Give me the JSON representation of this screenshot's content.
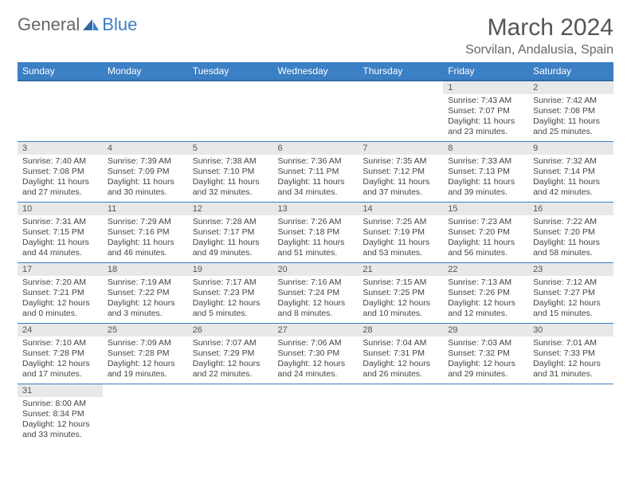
{
  "logo": {
    "word1": "General",
    "word2": "Blue"
  },
  "title": "March 2024",
  "location": "Sorvilan, Andalusia, Spain",
  "weekdays": [
    "Sunday",
    "Monday",
    "Tuesday",
    "Wednesday",
    "Thursday",
    "Friday",
    "Saturday"
  ],
  "header_bg": "#3b7fc4",
  "daynum_bg": "#e8e8e8",
  "rows": [
    [
      null,
      null,
      null,
      null,
      null,
      {
        "n": "1",
        "sr": "7:43 AM",
        "ss": "7:07 PM",
        "dl": "11 hours and 23 minutes."
      },
      {
        "n": "2",
        "sr": "7:42 AM",
        "ss": "7:08 PM",
        "dl": "11 hours and 25 minutes."
      }
    ],
    [
      {
        "n": "3",
        "sr": "7:40 AM",
        "ss": "7:08 PM",
        "dl": "11 hours and 27 minutes."
      },
      {
        "n": "4",
        "sr": "7:39 AM",
        "ss": "7:09 PM",
        "dl": "11 hours and 30 minutes."
      },
      {
        "n": "5",
        "sr": "7:38 AM",
        "ss": "7:10 PM",
        "dl": "11 hours and 32 minutes."
      },
      {
        "n": "6",
        "sr": "7:36 AM",
        "ss": "7:11 PM",
        "dl": "11 hours and 34 minutes."
      },
      {
        "n": "7",
        "sr": "7:35 AM",
        "ss": "7:12 PM",
        "dl": "11 hours and 37 minutes."
      },
      {
        "n": "8",
        "sr": "7:33 AM",
        "ss": "7:13 PM",
        "dl": "11 hours and 39 minutes."
      },
      {
        "n": "9",
        "sr": "7:32 AM",
        "ss": "7:14 PM",
        "dl": "11 hours and 42 minutes."
      }
    ],
    [
      {
        "n": "10",
        "sr": "7:31 AM",
        "ss": "7:15 PM",
        "dl": "11 hours and 44 minutes."
      },
      {
        "n": "11",
        "sr": "7:29 AM",
        "ss": "7:16 PM",
        "dl": "11 hours and 46 minutes."
      },
      {
        "n": "12",
        "sr": "7:28 AM",
        "ss": "7:17 PM",
        "dl": "11 hours and 49 minutes."
      },
      {
        "n": "13",
        "sr": "7:26 AM",
        "ss": "7:18 PM",
        "dl": "11 hours and 51 minutes."
      },
      {
        "n": "14",
        "sr": "7:25 AM",
        "ss": "7:19 PM",
        "dl": "11 hours and 53 minutes."
      },
      {
        "n": "15",
        "sr": "7:23 AM",
        "ss": "7:20 PM",
        "dl": "11 hours and 56 minutes."
      },
      {
        "n": "16",
        "sr": "7:22 AM",
        "ss": "7:20 PM",
        "dl": "11 hours and 58 minutes."
      }
    ],
    [
      {
        "n": "17",
        "sr": "7:20 AM",
        "ss": "7:21 PM",
        "dl": "12 hours and 0 minutes."
      },
      {
        "n": "18",
        "sr": "7:19 AM",
        "ss": "7:22 PM",
        "dl": "12 hours and 3 minutes."
      },
      {
        "n": "19",
        "sr": "7:17 AM",
        "ss": "7:23 PM",
        "dl": "12 hours and 5 minutes."
      },
      {
        "n": "20",
        "sr": "7:16 AM",
        "ss": "7:24 PM",
        "dl": "12 hours and 8 minutes."
      },
      {
        "n": "21",
        "sr": "7:15 AM",
        "ss": "7:25 PM",
        "dl": "12 hours and 10 minutes."
      },
      {
        "n": "22",
        "sr": "7:13 AM",
        "ss": "7:26 PM",
        "dl": "12 hours and 12 minutes."
      },
      {
        "n": "23",
        "sr": "7:12 AM",
        "ss": "7:27 PM",
        "dl": "12 hours and 15 minutes."
      }
    ],
    [
      {
        "n": "24",
        "sr": "7:10 AM",
        "ss": "7:28 PM",
        "dl": "12 hours and 17 minutes."
      },
      {
        "n": "25",
        "sr": "7:09 AM",
        "ss": "7:28 PM",
        "dl": "12 hours and 19 minutes."
      },
      {
        "n": "26",
        "sr": "7:07 AM",
        "ss": "7:29 PM",
        "dl": "12 hours and 22 minutes."
      },
      {
        "n": "27",
        "sr": "7:06 AM",
        "ss": "7:30 PM",
        "dl": "12 hours and 24 minutes."
      },
      {
        "n": "28",
        "sr": "7:04 AM",
        "ss": "7:31 PM",
        "dl": "12 hours and 26 minutes."
      },
      {
        "n": "29",
        "sr": "7:03 AM",
        "ss": "7:32 PM",
        "dl": "12 hours and 29 minutes."
      },
      {
        "n": "30",
        "sr": "7:01 AM",
        "ss": "7:33 PM",
        "dl": "12 hours and 31 minutes."
      }
    ],
    [
      {
        "n": "31",
        "sr": "8:00 AM",
        "ss": "8:34 PM",
        "dl": "12 hours and 33 minutes."
      },
      null,
      null,
      null,
      null,
      null,
      null
    ]
  ],
  "labels": {
    "sunrise": "Sunrise:",
    "sunset": "Sunset:",
    "daylight": "Daylight:"
  }
}
